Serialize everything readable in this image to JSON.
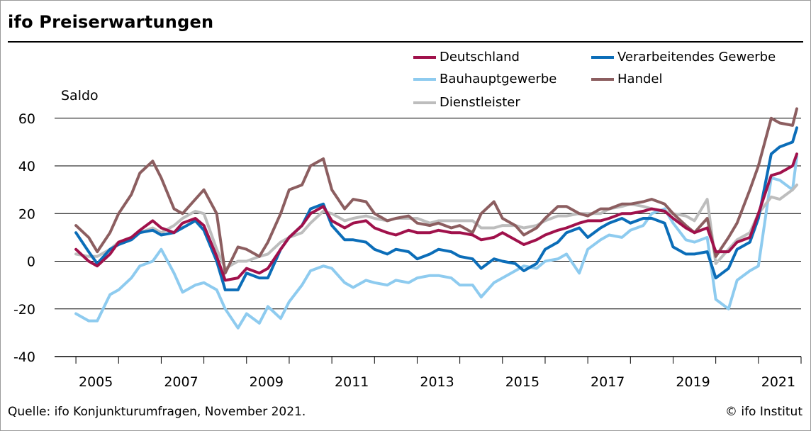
{
  "title": "ifo Preiserwartungen",
  "source": "Quelle: ifo Konjunkturumfragen, November 2021.",
  "copyright": "© ifo Institut",
  "colors": {
    "Deutschland": "#a0114b",
    "Verarbeitendes Gewerbe": "#0b6db8",
    "Bauhauptgewerbe": "#8ecbef",
    "Handel": "#8c5e60",
    "Dienstleister": "#bdbdbd"
  },
  "chart_data": {
    "type": "line",
    "title": "ifo Preiserwartungen",
    "ylabel": "Saldo",
    "xlabel": "",
    "ylim": [
      -40,
      65
    ],
    "yticks": [
      "60",
      "40",
      "20",
      "0",
      "-20",
      "-40"
    ],
    "xtick_labels": [
      "2005",
      "2007",
      "2009",
      "2011",
      "2013",
      "2015",
      "2017",
      "2019",
      "2021"
    ],
    "grid": true,
    "legend_position": "top-right",
    "x_format": "year.fraction",
    "series": [
      {
        "name": "Deutschland",
        "x": [
          2005.0,
          2005.3,
          2005.5,
          2005.8,
          2006.0,
          2006.3,
          2006.5,
          2006.8,
          2007.0,
          2007.3,
          2007.5,
          2007.8,
          2008.0,
          2008.3,
          2008.5,
          2008.8,
          2009.0,
          2009.3,
          2009.5,
          2009.8,
          2010.0,
          2010.3,
          2010.5,
          2010.8,
          2011.0,
          2011.3,
          2011.5,
          2011.8,
          2012.0,
          2012.3,
          2012.5,
          2012.8,
          2013.0,
          2013.3,
          2013.5,
          2013.8,
          2014.0,
          2014.3,
          2014.5,
          2014.8,
          2015.0,
          2015.3,
          2015.5,
          2015.8,
          2016.0,
          2016.3,
          2016.5,
          2016.8,
          2017.0,
          2017.3,
          2017.5,
          2017.8,
          2018.0,
          2018.3,
          2018.5,
          2018.8,
          2019.0,
          2019.3,
          2019.5,
          2019.8,
          2020.0,
          2020.3,
          2020.5,
          2020.8,
          2021.0,
          2021.3,
          2021.5,
          2021.8,
          2021.9
        ],
        "values": [
          5,
          0,
          -2,
          3,
          8,
          10,
          13,
          17,
          14,
          12,
          16,
          18,
          15,
          2,
          -8,
          -7,
          -3,
          -5,
          -3,
          5,
          10,
          15,
          20,
          23,
          17,
          14,
          16,
          17,
          14,
          12,
          11,
          13,
          12,
          12,
          13,
          12,
          12,
          11,
          9,
          10,
          12,
          9,
          7,
          9,
          11,
          13,
          14,
          16,
          17,
          17,
          18,
          20,
          20,
          21,
          22,
          21,
          18,
          14,
          12,
          14,
          4,
          4,
          8,
          10,
          20,
          36,
          37,
          40,
          45
        ]
      },
      {
        "name": "Verarbeitendes Gewerbe",
        "x": [
          2005.0,
          2005.3,
          2005.5,
          2005.8,
          2006.0,
          2006.3,
          2006.5,
          2006.8,
          2007.0,
          2007.3,
          2007.5,
          2007.8,
          2008.0,
          2008.3,
          2008.5,
          2008.8,
          2009.0,
          2009.3,
          2009.5,
          2009.8,
          2010.0,
          2010.3,
          2010.5,
          2010.8,
          2011.0,
          2011.3,
          2011.5,
          2011.8,
          2012.0,
          2012.3,
          2012.5,
          2012.8,
          2013.0,
          2013.3,
          2013.5,
          2013.8,
          2014.0,
          2014.3,
          2014.5,
          2014.8,
          2015.0,
          2015.3,
          2015.5,
          2015.8,
          2016.0,
          2016.3,
          2016.5,
          2016.8,
          2017.0,
          2017.3,
          2017.5,
          2017.8,
          2018.0,
          2018.3,
          2018.5,
          2018.8,
          2019.0,
          2019.3,
          2019.5,
          2019.8,
          2020.0,
          2020.3,
          2020.5,
          2020.8,
          2021.0,
          2021.3,
          2021.5,
          2021.8,
          2021.9
        ],
        "values": [
          12,
          4,
          -1,
          5,
          7,
          9,
          12,
          13,
          11,
          12,
          14,
          17,
          13,
          0,
          -12,
          -12,
          -5,
          -7,
          -7,
          5,
          10,
          15,
          22,
          24,
          15,
          9,
          9,
          8,
          5,
          3,
          5,
          4,
          1,
          3,
          5,
          4,
          2,
          1,
          -3,
          1,
          0,
          -1,
          -4,
          -1,
          5,
          8,
          12,
          14,
          10,
          14,
          16,
          18,
          16,
          18,
          18,
          16,
          6,
          3,
          3,
          4,
          -7,
          -3,
          5,
          8,
          18,
          45,
          48,
          50,
          56
        ]
      },
      {
        "name": "Bauhauptgewerbe",
        "x": [
          2005.0,
          2005.3,
          2005.5,
          2005.8,
          2006.0,
          2006.3,
          2006.5,
          2006.8,
          2007.0,
          2007.3,
          2007.5,
          2007.8,
          2008.0,
          2008.3,
          2008.5,
          2008.8,
          2009.0,
          2009.3,
          2009.5,
          2009.8,
          2010.0,
          2010.3,
          2010.5,
          2010.8,
          2011.0,
          2011.3,
          2011.5,
          2011.8,
          2012.0,
          2012.3,
          2012.5,
          2012.8,
          2013.0,
          2013.3,
          2013.5,
          2013.8,
          2014.0,
          2014.3,
          2014.5,
          2014.8,
          2015.0,
          2015.3,
          2015.5,
          2015.8,
          2016.0,
          2016.3,
          2016.5,
          2016.8,
          2017.0,
          2017.3,
          2017.5,
          2017.8,
          2018.0,
          2018.3,
          2018.5,
          2018.8,
          2019.0,
          2019.3,
          2019.5,
          2019.8,
          2020.0,
          2020.3,
          2020.5,
          2020.8,
          2021.0,
          2021.3,
          2021.5,
          2021.8,
          2021.9
        ],
        "values": [
          -22,
          -25,
          -25,
          -14,
          -12,
          -7,
          -2,
          0,
          5,
          -5,
          -13,
          -10,
          -9,
          -12,
          -20,
          -28,
          -22,
          -26,
          -19,
          -24,
          -17,
          -10,
          -4,
          -2,
          -3,
          -9,
          -11,
          -8,
          -9,
          -10,
          -8,
          -9,
          -7,
          -6,
          -6,
          -7,
          -10,
          -10,
          -15,
          -9,
          -7,
          -4,
          -2,
          -3,
          0,
          1,
          3,
          -5,
          5,
          9,
          11,
          10,
          13,
          15,
          20,
          22,
          16,
          9,
          8,
          10,
          -16,
          -20,
          -8,
          -4,
          -2,
          35,
          34,
          30,
          44
        ]
      },
      {
        "name": "Handel",
        "x": [
          2005.0,
          2005.3,
          2005.5,
          2005.8,
          2006.0,
          2006.3,
          2006.5,
          2006.8,
          2007.0,
          2007.3,
          2007.5,
          2007.8,
          2008.0,
          2008.3,
          2008.5,
          2008.8,
          2009.0,
          2009.3,
          2009.5,
          2009.8,
          2010.0,
          2010.3,
          2010.5,
          2010.8,
          2011.0,
          2011.3,
          2011.5,
          2011.8,
          2012.0,
          2012.3,
          2012.5,
          2012.8,
          2013.0,
          2013.3,
          2013.5,
          2013.8,
          2014.0,
          2014.3,
          2014.5,
          2014.8,
          2015.0,
          2015.3,
          2015.5,
          2015.8,
          2016.0,
          2016.3,
          2016.5,
          2016.8,
          2017.0,
          2017.3,
          2017.5,
          2017.8,
          2018.0,
          2018.3,
          2018.5,
          2018.8,
          2019.0,
          2019.3,
          2019.5,
          2019.8,
          2020.0,
          2020.3,
          2020.5,
          2020.8,
          2021.0,
          2021.3,
          2021.5,
          2021.8,
          2021.9
        ],
        "values": [
          15,
          10,
          4,
          12,
          20,
          28,
          37,
          42,
          35,
          22,
          20,
          26,
          30,
          20,
          -5,
          6,
          5,
          2,
          8,
          20,
          30,
          32,
          40,
          43,
          30,
          22,
          26,
          25,
          20,
          17,
          18,
          19,
          16,
          15,
          16,
          14,
          15,
          12,
          20,
          25,
          18,
          15,
          11,
          14,
          18,
          23,
          23,
          20,
          19,
          22,
          22,
          24,
          24,
          25,
          26,
          24,
          20,
          15,
          12,
          18,
          2,
          10,
          16,
          30,
          40,
          60,
          58,
          57,
          64
        ]
      },
      {
        "name": "Dienstleister",
        "x": [
          2005.0,
          2005.3,
          2005.5,
          2005.8,
          2006.0,
          2006.3,
          2006.5,
          2006.8,
          2007.0,
          2007.3,
          2007.5,
          2007.8,
          2008.0,
          2008.3,
          2008.5,
          2008.8,
          2009.0,
          2009.3,
          2009.5,
          2009.8,
          2010.0,
          2010.3,
          2010.5,
          2010.8,
          2011.0,
          2011.3,
          2011.5,
          2011.8,
          2012.0,
          2012.3,
          2012.5,
          2012.8,
          2013.0,
          2013.3,
          2013.5,
          2013.8,
          2014.0,
          2014.3,
          2014.5,
          2014.8,
          2015.0,
          2015.3,
          2015.5,
          2015.8,
          2016.0,
          2016.3,
          2016.5,
          2016.8,
          2017.0,
          2017.3,
          2017.5,
          2017.8,
          2018.0,
          2018.3,
          2018.5,
          2018.8,
          2019.0,
          2019.3,
          2019.5,
          2019.8,
          2020.0,
          2020.3,
          2020.5,
          2020.8,
          2021.0,
          2021.3,
          2021.5,
          2021.8,
          2021.9
        ],
        "values": [
          3,
          2,
          2,
          5,
          8,
          10,
          12,
          14,
          12,
          15,
          18,
          21,
          20,
          5,
          -3,
          0,
          0,
          2,
          3,
          8,
          10,
          12,
          16,
          21,
          20,
          17,
          18,
          19,
          18,
          17,
          18,
          18,
          18,
          16,
          17,
          17,
          17,
          17,
          14,
          14,
          15,
          15,
          14,
          15,
          17,
          19,
          19,
          20,
          20,
          20,
          22,
          23,
          24,
          23,
          22,
          21,
          20,
          19,
          17,
          26,
          -1,
          5,
          9,
          12,
          20,
          27,
          26,
          30,
          32
        ]
      }
    ]
  }
}
